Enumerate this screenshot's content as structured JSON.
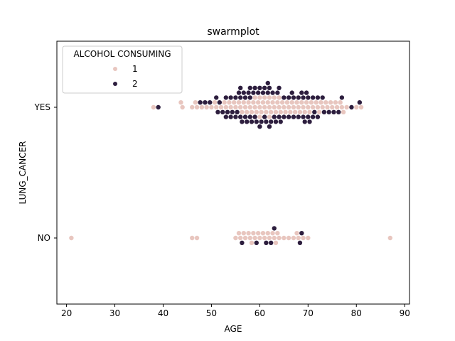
{
  "chart_data": {
    "type": "scatter",
    "subtype": "swarm",
    "title": "swarmplot",
    "xlabel": "AGE",
    "ylabel": "LUNG_CANCER",
    "xlim": [
      18,
      91
    ],
    "x_ticks": [
      20,
      30,
      40,
      50,
      60,
      70,
      80,
      90
    ],
    "categories": [
      "YES",
      "NO"
    ],
    "grid": false,
    "legend": {
      "title": "ALCOHOL CONSUMING",
      "placement": "top-left",
      "entries": [
        {
          "label": "1",
          "color": "#e8c6bf"
        },
        {
          "label": "2",
          "color": "#2d1e3e"
        }
      ]
    },
    "series": [
      {
        "name": "1",
        "color": "#e8c6bf",
        "points": [
          {
            "category": "YES",
            "ages": [
              38,
              44,
              44,
              46,
              47,
              47,
              48,
              49,
              50,
              51,
              51,
              52,
              53,
              53,
              54,
              54,
              55,
              55,
              56,
              56,
              56,
              57,
              57,
              57,
              58,
              58,
              58,
              59,
              59,
              59,
              59,
              60,
              60,
              60,
              60,
              60,
              61,
              61,
              61,
              61,
              62,
              62,
              62,
              62,
              62,
              63,
              63,
              63,
              63,
              64,
              64,
              64,
              64,
              65,
              65,
              65,
              66,
              66,
              66,
              67,
              67,
              67,
              68,
              68,
              68,
              69,
              69,
              69,
              70,
              70,
              70,
              71,
              71,
              72,
              72,
              72,
              73,
              73,
              74,
              74,
              75,
              75,
              76,
              76,
              77,
              77,
              77,
              78,
              80,
              81
            ]
          },
          {
            "category": "NO",
            "ages": [
              21,
              46,
              47,
              55,
              56,
              56,
              57,
              57,
              58,
              58,
              58,
              59,
              59,
              60,
              60,
              61,
              61,
              62,
              62,
              63,
              63,
              63,
              64,
              64,
              65,
              66,
              67,
              68,
              68,
              69,
              70,
              87
            ]
          }
        ]
      },
      {
        "name": "2",
        "color": "#2d1e3e",
        "points": [
          {
            "category": "YES",
            "ages": [
              39,
              48,
              49,
              50,
              51,
              51,
              52,
              52,
              53,
              53,
              53,
              54,
              54,
              54,
              55,
              55,
              55,
              56,
              56,
              56,
              56,
              56,
              57,
              57,
              57,
              57,
              58,
              58,
              58,
              58,
              58,
              59,
              59,
              59,
              59,
              60,
              60,
              60,
              60,
              61,
              61,
              61,
              61,
              62,
              62,
              62,
              62,
              62,
              63,
              63,
              63,
              64,
              64,
              64,
              64,
              65,
              65,
              66,
              66,
              67,
              67,
              67,
              68,
              68,
              69,
              69,
              69,
              69,
              70,
              70,
              70,
              70,
              71,
              71,
              71,
              72,
              72,
              73,
              73,
              74,
              75,
              76,
              77,
              79,
              81
            ]
          },
          {
            "category": "NO",
            "ages": [
              56,
              59,
              61,
              62,
              63,
              68,
              69
            ]
          }
        ]
      }
    ]
  }
}
